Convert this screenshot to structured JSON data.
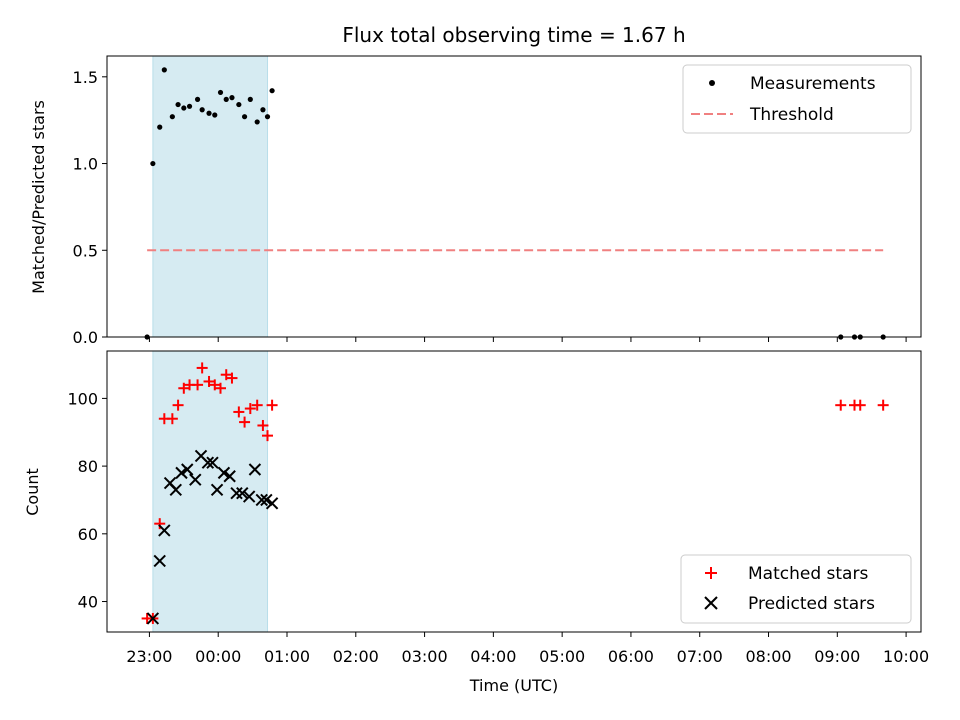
{
  "chart_data": [
    {
      "type": "scatter",
      "title": "Flux total observing time = 1.67 h",
      "xlabel": "",
      "ylabel": "Matched/Predicted stars",
      "ylim": [
        0,
        1.62
      ],
      "yticks": [
        0.0,
        0.5,
        1.0,
        1.5
      ],
      "ytick_labels": [
        "0.0",
        "0.5",
        "1.0",
        "1.5"
      ],
      "shaded_interval": [
        "23:03",
        "00:43"
      ],
      "shade_color": "#add8e6",
      "legend_position": "upper right",
      "series": [
        {
          "name": "Measurements",
          "marker": "dot",
          "color": "#000000",
          "points": [
            [
              "22:58",
              0.0
            ],
            [
              "23:03",
              1.0
            ],
            [
              "23:09",
              1.21
            ],
            [
              "23:13",
              1.54
            ],
            [
              "23:20",
              1.27
            ],
            [
              "23:25",
              1.34
            ],
            [
              "23:30",
              1.32
            ],
            [
              "23:35",
              1.33
            ],
            [
              "23:42",
              1.37
            ],
            [
              "23:46",
              1.31
            ],
            [
              "23:52",
              1.29
            ],
            [
              "23:57",
              1.28
            ],
            [
              "00:02",
              1.41
            ],
            [
              "00:07",
              1.37
            ],
            [
              "00:12",
              1.38
            ],
            [
              "00:18",
              1.34
            ],
            [
              "00:23",
              1.27
            ],
            [
              "00:28",
              1.37
            ],
            [
              "00:34",
              1.24
            ],
            [
              "00:39",
              1.31
            ],
            [
              "00:43",
              1.27
            ],
            [
              "00:47",
              1.42
            ],
            [
              "09:03",
              0.0
            ],
            [
              "09:15",
              0.0
            ],
            [
              "09:20",
              0.0
            ],
            [
              "09:40",
              0.0
            ]
          ]
        },
        {
          "name": "Threshold",
          "marker": "dashed-line",
          "color": "#f08080",
          "points": [
            [
              "22:58",
              0.5
            ],
            [
              "09:40",
              0.5
            ]
          ]
        }
      ]
    },
    {
      "type": "scatter",
      "xlabel": "Time (UTC)",
      "ylabel": "Count",
      "ylim": [
        31,
        114
      ],
      "yticks": [
        40,
        60,
        80,
        100
      ],
      "ytick_labels": [
        "40",
        "60",
        "80",
        "100"
      ],
      "xlim": [
        "22:23",
        "10:13"
      ],
      "xticks": [
        "23:00",
        "00:00",
        "01:00",
        "02:00",
        "03:00",
        "04:00",
        "05:00",
        "06:00",
        "07:00",
        "08:00",
        "09:00",
        "10:00"
      ],
      "xtick_labels": [
        "23:00",
        "00:00",
        "01:00",
        "02:00",
        "03:00",
        "04:00",
        "05:00",
        "06:00",
        "07:00",
        "08:00",
        "09:00",
        "10:00"
      ],
      "shaded_interval": [
        "23:03",
        "00:43"
      ],
      "shade_color": "#add8e6",
      "legend_position": "lower right",
      "series": [
        {
          "name": "Matched stars",
          "marker": "plus",
          "color": "#ff0000",
          "points": [
            [
              "22:58",
              35
            ],
            [
              "23:03",
              35
            ],
            [
              "23:09",
              63
            ],
            [
              "23:13",
              94
            ],
            [
              "23:20",
              94
            ],
            [
              "23:25",
              98
            ],
            [
              "23:30",
              103
            ],
            [
              "23:35",
              104
            ],
            [
              "23:42",
              104
            ],
            [
              "23:46",
              109
            ],
            [
              "23:52",
              105
            ],
            [
              "23:57",
              104
            ],
            [
              "00:02",
              103
            ],
            [
              "00:07",
              107
            ],
            [
              "00:12",
              106
            ],
            [
              "00:18",
              96
            ],
            [
              "00:23",
              93
            ],
            [
              "00:28",
              97
            ],
            [
              "00:34",
              98
            ],
            [
              "00:39",
              92
            ],
            [
              "00:43",
              89
            ],
            [
              "00:47",
              98
            ],
            [
              "09:03",
              98
            ],
            [
              "09:15",
              98
            ],
            [
              "09:20",
              98
            ],
            [
              "09:40",
              98
            ]
          ]
        },
        {
          "name": "Predicted stars",
          "marker": "x",
          "color": "#000000",
          "points": [
            [
              "23:03",
              35
            ],
            [
              "23:09",
              52
            ],
            [
              "23:13",
              61
            ],
            [
              "23:18",
              75
            ],
            [
              "23:23",
              73
            ],
            [
              "23:28",
              78
            ],
            [
              "23:33",
              79
            ],
            [
              "23:40",
              76
            ],
            [
              "23:45",
              83
            ],
            [
              "23:51",
              81
            ],
            [
              "23:55",
              81
            ],
            [
              "23:59",
              73
            ],
            [
              "00:05",
              78
            ],
            [
              "00:10",
              77
            ],
            [
              "00:16",
              72
            ],
            [
              "00:21",
              72
            ],
            [
              "00:27",
              71
            ],
            [
              "00:32",
              79
            ],
            [
              "00:38",
              70
            ],
            [
              "00:42",
              70
            ],
            [
              "00:47",
              69
            ]
          ]
        }
      ]
    }
  ]
}
